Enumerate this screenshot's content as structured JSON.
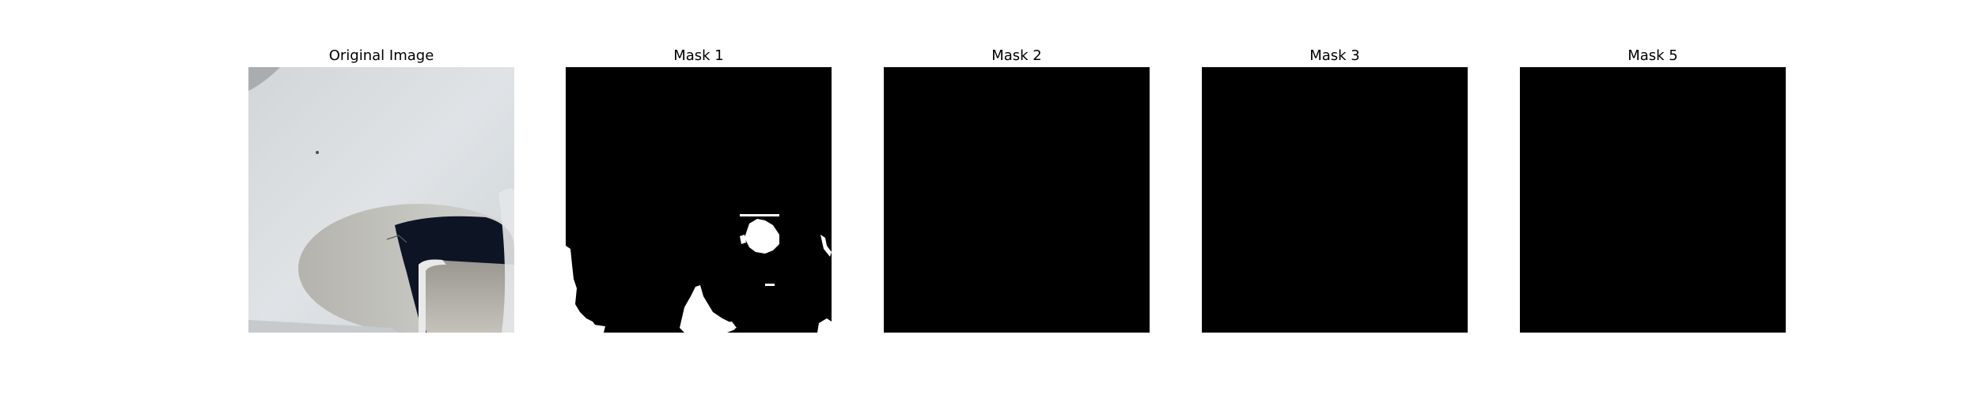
{
  "panels": [
    {
      "title": "Original Image"
    },
    {
      "title": "Mask 1"
    },
    {
      "title": "Mask 2"
    },
    {
      "title": "Mask 3"
    },
    {
      "title": "Mask 5"
    }
  ],
  "colors": {
    "mask_background": "#000000",
    "mask_foreground": "#ffffff",
    "photo_surface": "#d6dbde",
    "photo_shadow": "#b9bcbd",
    "photo_hole": "#0d1424"
  }
}
